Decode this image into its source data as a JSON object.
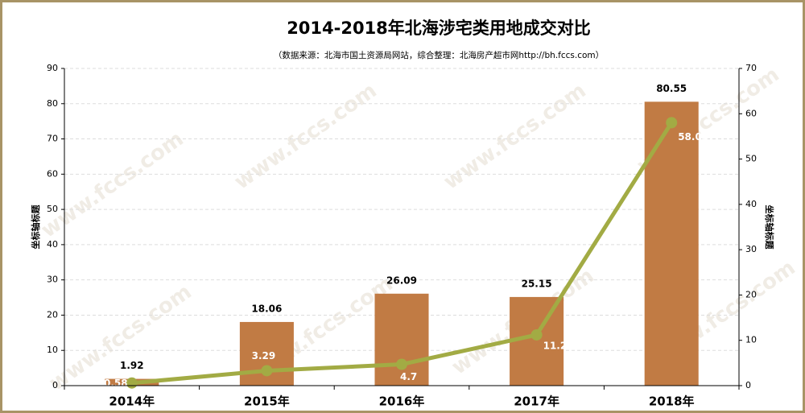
{
  "chart_data": {
    "type": "bar-line",
    "title": "2014-2018年北海涉宅类用地成交对比",
    "subtitle": "（数据来源：北海市国土资源局网站，综合整理：北海房产超市网http://bh.fccs.com）",
    "y_label": "坐标轴标题",
    "y2_label": "坐标轴标题",
    "watermark": "www.fccs.com",
    "categories": [
      "2014年",
      "2015年",
      "2016年",
      "2017年",
      "2018年"
    ],
    "series": [
      {
        "type": "bar",
        "color": "#c17b44",
        "values": [
          1.92,
          18.06,
          26.09,
          25.15,
          80.55
        ]
      },
      {
        "type": "line",
        "axis": "y2",
        "color": "#a2ab44",
        "values": [
          0.58,
          3.29,
          4.7,
          11.2,
          58.03
        ]
      }
    ],
    "ylim": [
      0,
      90
    ],
    "yticks": [
      0,
      10,
      20,
      30,
      40,
      50,
      60,
      70,
      80,
      90
    ],
    "y2lim": [
      0,
      70
    ],
    "y2ticks": [
      0,
      10,
      20,
      30,
      40,
      50,
      60,
      70
    ],
    "grid": true
  }
}
